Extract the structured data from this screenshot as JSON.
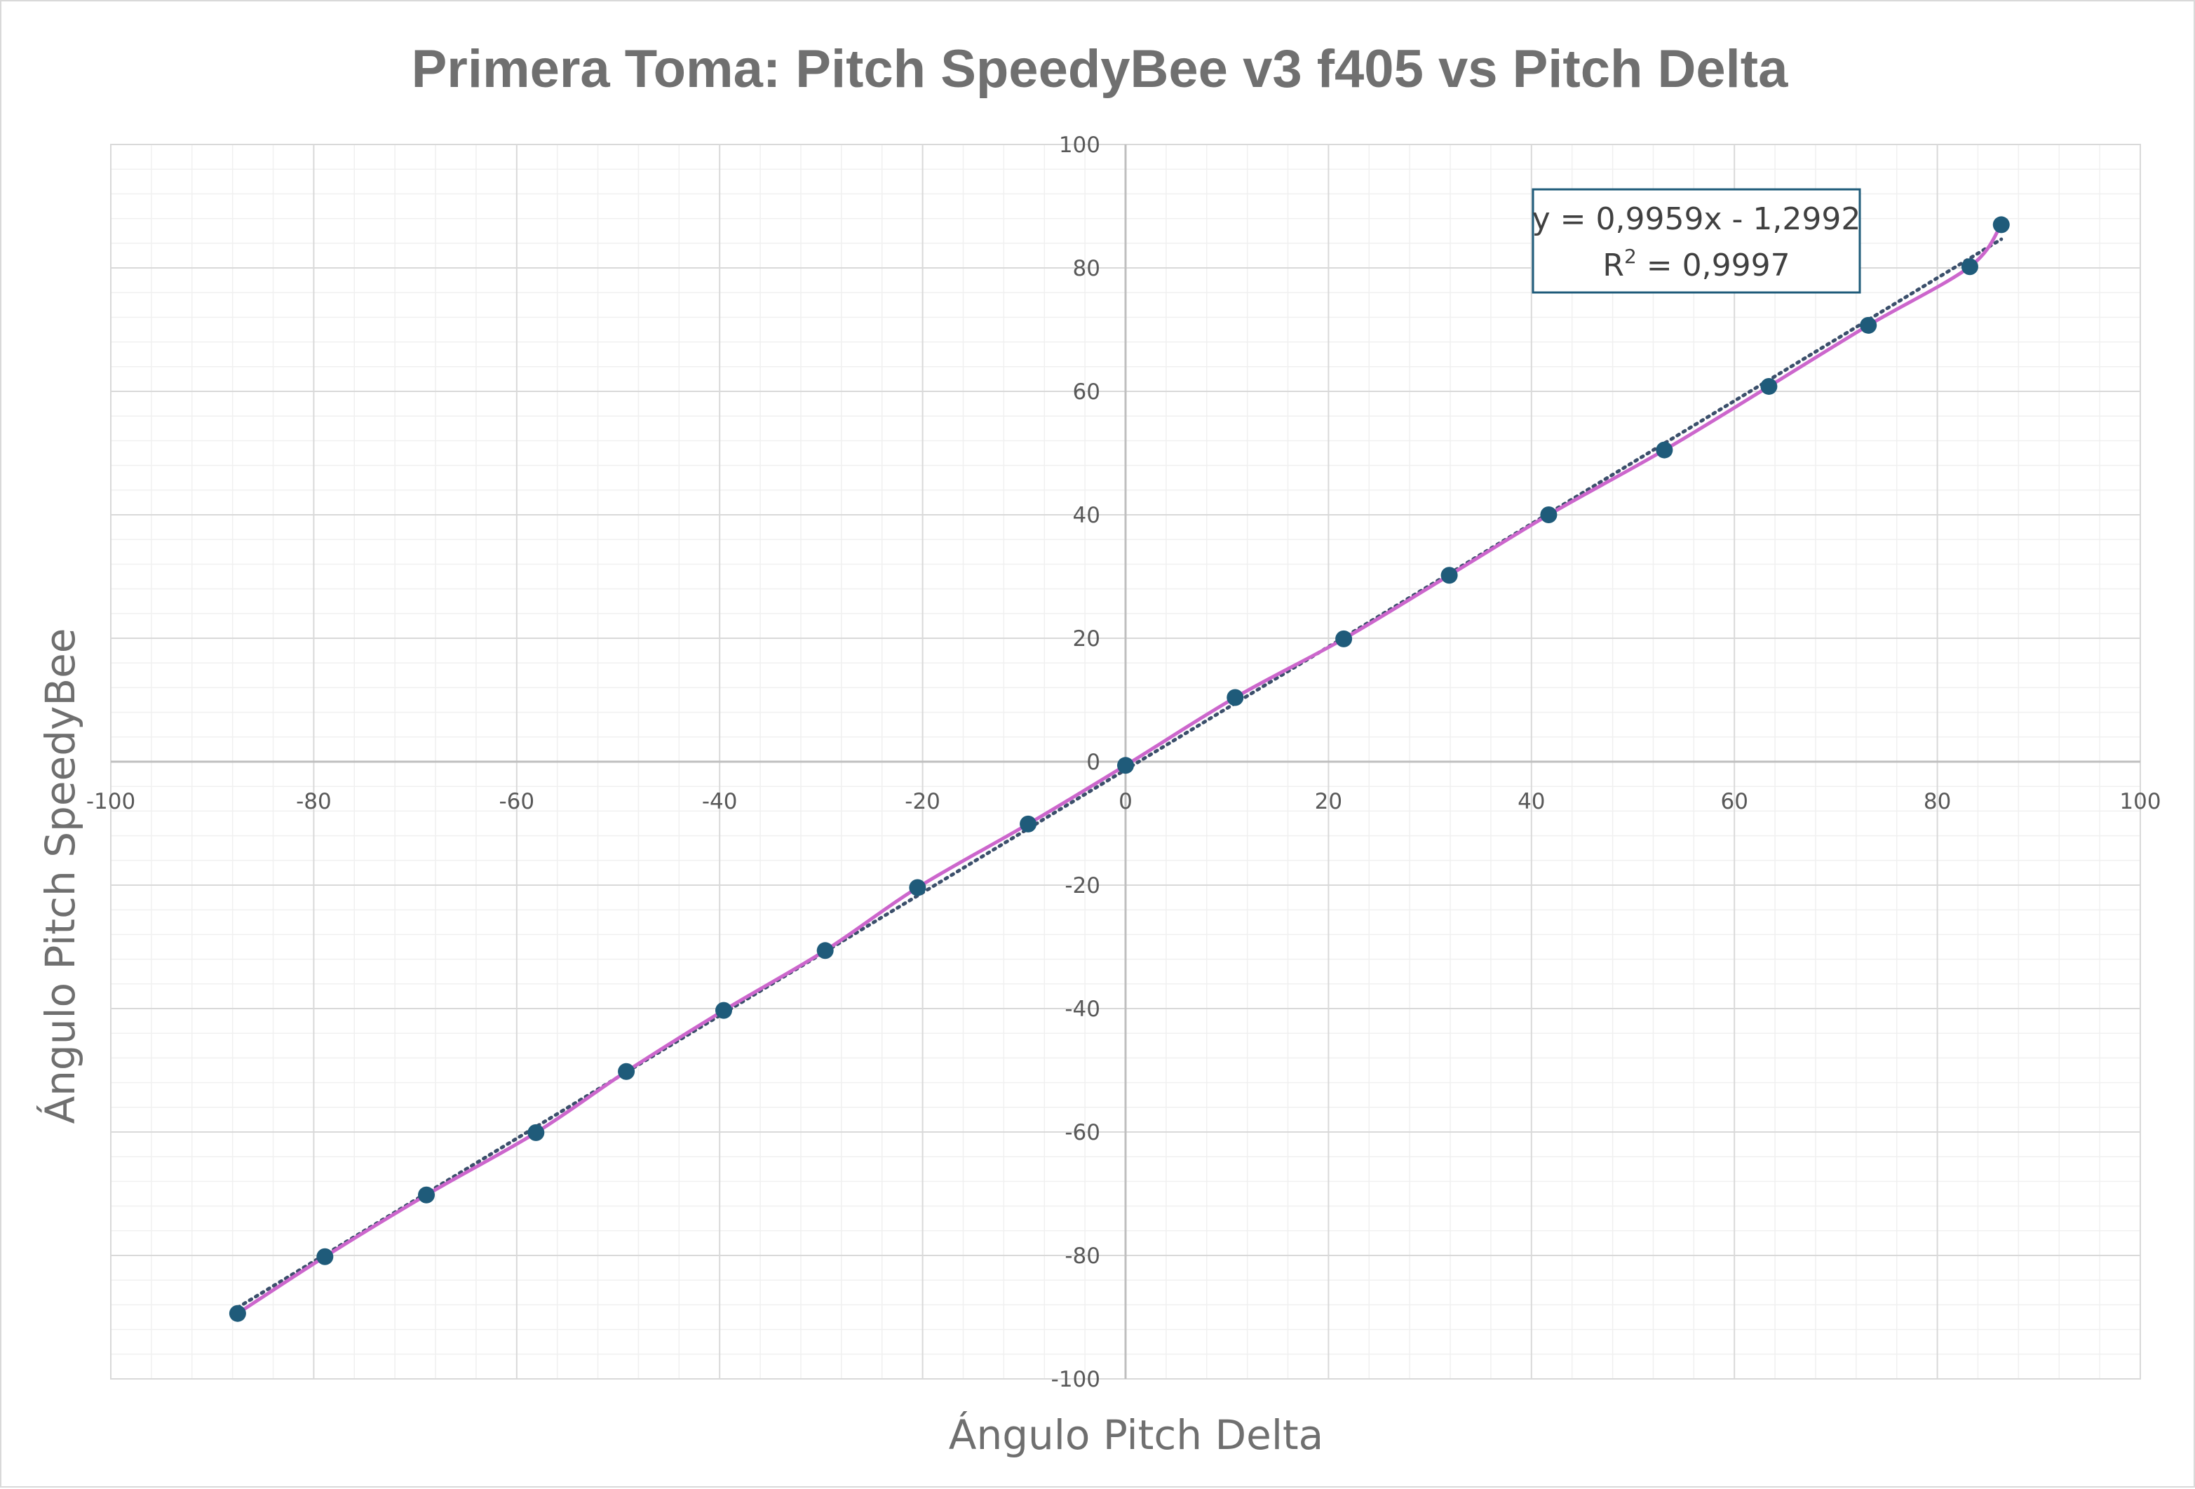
{
  "chart_data": {
    "type": "scatter",
    "title": "Primera Toma: Pitch SpeedyBee v3 f405 vs Pitch Delta",
    "xlabel": "Ángulo Pitch Delta",
    "ylabel": "Ángulo Pitch SpeedyBee",
    "xlim": [
      -100,
      100
    ],
    "ylim": [
      -100,
      100
    ],
    "x_ticks": [
      -100,
      -80,
      -60,
      -40,
      -20,
      0,
      20,
      40,
      60,
      80,
      100
    ],
    "y_ticks": [
      -100,
      -80,
      -60,
      -40,
      -20,
      0,
      20,
      40,
      60,
      80,
      100
    ],
    "x_tick_labels": [
      "-100",
      "-80",
      "-60",
      "-40",
      "-20",
      "0",
      "20",
      "40",
      "60",
      "80",
      "100"
    ],
    "y_tick_labels": [
      "-100",
      "-80",
      "-60",
      "-40",
      "-20",
      "0",
      "20",
      "40",
      "60",
      "80",
      "100"
    ],
    "grid": true,
    "minor_grid": true,
    "legend": "none",
    "series": [
      {
        "x": [
          -87.5,
          -78.9,
          -68.9,
          -58.1,
          -49.2,
          -39.6,
          -29.6,
          -20.5,
          -9.6,
          0.0,
          10.8,
          21.5,
          31.9,
          41.7,
          53.1,
          63.4,
          73.2,
          83.2,
          86.3
        ],
        "y": [
          -89.4,
          -80.2,
          -70.2,
          -60.1,
          -50.2,
          -40.3,
          -30.6,
          -20.4,
          -10.1,
          -0.6,
          10.4,
          19.9,
          30.2,
          40.0,
          50.5,
          60.8,
          70.7,
          80.2,
          87.0
        ],
        "marker_color": "#1f5b7a",
        "line_color": "#cc66cc",
        "smooth_line": true
      }
    ],
    "trendline": {
      "slope": 0.9959,
      "intercept": -1.2992,
      "x_range": [
        -87.5,
        86.3
      ],
      "color": "#3b4f6b",
      "style": "dotted",
      "equation_line1": "y = 0,9959x - 1,2992",
      "r2_prefix": "R",
      "r2_exponent": "2",
      "r2_value": " = 0,9997",
      "box_border_color": "#1f5b7a"
    },
    "colors": {
      "major_grid": "#d9d9d9",
      "minor_grid": "#f0f0f0",
      "axis": "#bfbfbf",
      "title": "#707070",
      "tick_label": "#595959"
    }
  }
}
